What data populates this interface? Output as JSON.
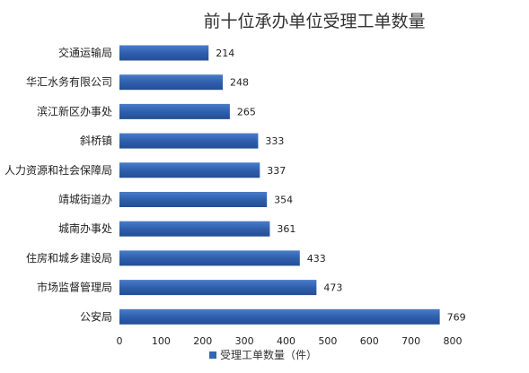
{
  "chart_data": {
    "type": "bar",
    "orientation": "horizontal",
    "title": "前十位承办单位受理工单数量",
    "categories": [
      "交通运输局",
      "华汇水务有限公司",
      "滨江新区办事处",
      "斜桥镇",
      "人力资源和社会保障局",
      "靖城街道办",
      "城南办事处",
      "住房和城乡建设局",
      "市场监督管理局",
      "公安局"
    ],
    "series": [
      {
        "name": "受理工单数量（件）",
        "values": [
          214,
          248,
          265,
          333,
          337,
          354,
          361,
          433,
          473,
          769
        ]
      }
    ],
    "xlim": [
      0,
      800
    ],
    "xticks": [
      "0",
      "100",
      "200",
      "300",
      "400",
      "500",
      "600",
      "700",
      "800"
    ],
    "grid": false,
    "legend_position": "bottom",
    "bar_color": "#3366b5"
  }
}
